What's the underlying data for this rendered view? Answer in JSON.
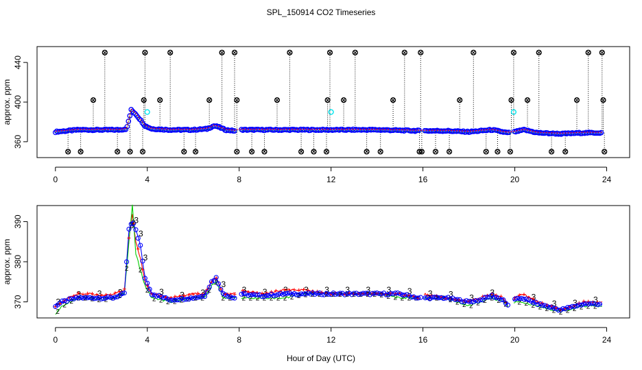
{
  "title": "SPL_150914  CO2 Timeseries",
  "xlabel": "Hour of Day (UTC)",
  "colors": {
    "axis": "#000000",
    "series_black": "#000000",
    "series_red": "#ff0000",
    "series_green": "#00cd00",
    "series_blue": "#0000ff",
    "series_cyan": "#00e5ee"
  },
  "chart_data": [
    {
      "type": "scatter",
      "panel": "top",
      "title": "",
      "ylabel": "approx. ppm",
      "xlabel": "",
      "xlim": [
        -0.8,
        25
      ],
      "ylim": [
        344,
        456
      ],
      "x_ticks": [
        0,
        4,
        8,
        12,
        16,
        20,
        24
      ],
      "y_ticks": [
        360,
        400,
        440
      ],
      "grid": false,
      "baseline": [
        [
          0.0,
          370
        ],
        [
          0.5,
          371
        ],
        [
          1.0,
          372
        ],
        [
          2.0,
          372
        ],
        [
          2.8,
          372
        ],
        [
          3.1,
          373
        ],
        [
          3.3,
          392
        ],
        [
          3.5,
          388
        ],
        [
          3.7,
          382
        ],
        [
          3.9,
          376
        ],
        [
          4.2,
          373
        ],
        [
          5.0,
          372
        ],
        [
          6.0,
          372
        ],
        [
          6.6,
          373
        ],
        [
          6.9,
          376
        ],
        [
          7.1,
          375
        ],
        [
          7.4,
          372
        ],
        [
          7.8,
          371
        ],
        [
          8.0,
          372
        ],
        [
          10.0,
          372
        ],
        [
          12.0,
          372
        ],
        [
          14.0,
          372
        ],
        [
          15.9,
          371
        ],
        [
          16.0,
          371
        ],
        [
          17.0,
          371
        ],
        [
          18.0,
          370
        ],
        [
          19.0,
          372
        ],
        [
          19.7,
          369
        ],
        [
          20.0,
          370
        ],
        [
          20.4,
          372
        ],
        [
          21.0,
          369
        ],
        [
          22.0,
          368
        ],
        [
          23.0,
          369
        ],
        [
          23.8,
          369
        ]
      ],
      "series": [
        {
          "color": "blue",
          "marker": "circle",
          "description": "dense circles along baseline"
        },
        {
          "color": "black",
          "marker": "circle-x",
          "outliers_high": [
            2.15,
            3.9,
            5.0,
            7.25,
            7.8,
            10.2,
            11.95,
            13.05,
            15.2,
            15.9,
            18.2,
            19.95,
            21.05,
            23.2,
            23.8
          ],
          "outliers_high_value": 450,
          "outliers_mid": [
            1.65,
            3.85,
            4.55,
            6.7,
            7.9,
            9.65,
            11.85,
            12.55,
            14.7,
            17.6,
            19.85,
            20.55,
            22.7,
            23.85
          ],
          "outliers_mid_value": 402,
          "outliers_low": [
            0.55,
            1.1,
            2.7,
            3.25,
            3.8,
            5.6,
            6.1,
            7.9,
            8.55,
            9.1,
            10.7,
            11.25,
            11.8,
            13.55,
            14.15,
            15.85,
            15.95,
            16.55,
            17.15,
            18.75,
            19.25,
            19.8,
            21.6,
            22.2,
            23.9
          ],
          "outliers_low_value": 350
        },
        {
          "color": "cyan",
          "marker": "circle",
          "points": [
            [
              4.0,
              390
            ],
            [
              12.0,
              390
            ],
            [
              19.95,
              390
            ]
          ]
        }
      ]
    },
    {
      "type": "line",
      "panel": "bottom",
      "title": "",
      "ylabel": "approx. ppm",
      "xlabel": "Hour of Day (UTC)",
      "xlim": [
        -0.8,
        25
      ],
      "ylim": [
        366,
        394
      ],
      "x_ticks": [
        0,
        4,
        8,
        12,
        16,
        20,
        24
      ],
      "y_ticks": [
        370,
        380,
        390
      ],
      "grid": false,
      "series": [
        {
          "color": "red",
          "marker": "+",
          "points": [
            [
              0.0,
              369
            ],
            [
              0.3,
              370
            ],
            [
              0.6,
              371
            ],
            [
              1.0,
              372
            ],
            [
              1.5,
              372
            ],
            [
              2.0,
              371.5
            ],
            [
              2.5,
              372
            ],
            [
              3.0,
              373
            ],
            [
              3.2,
              386
            ],
            [
              3.35,
              392
            ],
            [
              3.5,
              385
            ],
            [
              3.7,
              381
            ],
            [
              3.9,
              375
            ],
            [
              4.2,
              372
            ],
            [
              5.0,
              371
            ],
            [
              6.0,
              372
            ],
            [
              6.5,
              372
            ],
            [
              6.8,
              375
            ],
            [
              7.0,
              376
            ],
            [
              7.3,
              372
            ],
            [
              7.8,
              372
            ],
            [
              8.0,
              373
            ],
            [
              9.0,
              372
            ],
            [
              10.0,
              373
            ],
            [
              11.0,
              373
            ],
            [
              12.0,
              372
            ],
            [
              13.0,
              372
            ],
            [
              14.0,
              372
            ],
            [
              15.0,
              372
            ],
            [
              15.8,
              371
            ],
            [
              16.0,
              372
            ],
            [
              17.0,
              371
            ],
            [
              18.0,
              370
            ],
            [
              18.5,
              371
            ],
            [
              19.0,
              372
            ],
            [
              19.5,
              371
            ],
            [
              19.7,
              369
            ],
            [
              20.0,
              371
            ],
            [
              20.3,
              372
            ],
            [
              21.0,
              370
            ],
            [
              22.0,
              368
            ],
            [
              23.0,
              370
            ],
            [
              23.8,
              370
            ]
          ]
        },
        {
          "color": "green",
          "marker": "2",
          "points": [
            [
              0.0,
              367
            ],
            [
              0.3,
              369
            ],
            [
              0.6,
              370
            ],
            [
              1.0,
              371
            ],
            [
              1.5,
              371
            ],
            [
              2.0,
              370.5
            ],
            [
              2.5,
              371
            ],
            [
              3.0,
              372
            ],
            [
              3.2,
              385
            ],
            [
              3.35,
              394
            ],
            [
              3.5,
              382
            ],
            [
              3.7,
              378
            ],
            [
              3.9,
              374
            ],
            [
              4.2,
              371
            ],
            [
              5.0,
              370
            ],
            [
              6.0,
              371
            ],
            [
              6.5,
              371
            ],
            [
              6.8,
              374
            ],
            [
              7.0,
              375
            ],
            [
              7.3,
              371
            ],
            [
              7.8,
              371
            ],
            [
              8.0,
              371
            ],
            [
              9.0,
              371
            ],
            [
              10.0,
              371
            ],
            [
              11.0,
              372
            ],
            [
              12.0,
              372
            ],
            [
              13.0,
              372
            ],
            [
              14.0,
              372
            ],
            [
              15.0,
              371
            ],
            [
              15.8,
              371
            ],
            [
              16.0,
              371
            ],
            [
              17.0,
              371
            ],
            [
              18.0,
              369
            ],
            [
              18.5,
              370
            ],
            [
              19.0,
              371
            ],
            [
              19.5,
              370
            ],
            [
              19.7,
              369
            ],
            [
              20.0,
              370
            ],
            [
              20.3,
              370
            ],
            [
              21.0,
              369
            ],
            [
              22.0,
              367.5
            ],
            [
              23.0,
              369
            ],
            [
              23.8,
              369
            ]
          ]
        },
        {
          "color": "blue",
          "marker": "circle",
          "label_marker": "3",
          "points": [
            [
              0.0,
              369
            ],
            [
              0.3,
              370
            ],
            [
              0.6,
              370.5
            ],
            [
              1.0,
              371
            ],
            [
              1.5,
              371
            ],
            [
              2.0,
              371
            ],
            [
              2.5,
              371
            ],
            [
              3.0,
              372
            ],
            [
              3.2,
              388
            ],
            [
              3.35,
              390
            ],
            [
              3.5,
              388
            ],
            [
              3.7,
              384
            ],
            [
              3.9,
              376
            ],
            [
              4.2,
              372
            ],
            [
              5.0,
              370.5
            ],
            [
              6.0,
              371
            ],
            [
              6.5,
              371.5
            ],
            [
              6.8,
              375
            ],
            [
              7.0,
              376
            ],
            [
              7.3,
              372
            ],
            [
              7.8,
              371
            ],
            [
              8.0,
              372
            ],
            [
              9.0,
              371.5
            ],
            [
              10.0,
              372
            ],
            [
              11.0,
              372
            ],
            [
              12.0,
              372
            ],
            [
              13.0,
              372
            ],
            [
              14.0,
              372
            ],
            [
              15.0,
              372
            ],
            [
              15.8,
              371
            ],
            [
              16.0,
              371
            ],
            [
              17.0,
              371
            ],
            [
              18.0,
              370
            ],
            [
              18.5,
              370.5
            ],
            [
              19.0,
              371.5
            ],
            [
              19.5,
              370.5
            ],
            [
              19.7,
              369
            ],
            [
              20.0,
              370.5
            ],
            [
              20.3,
              371
            ],
            [
              21.0,
              369.5
            ],
            [
              22.0,
              368
            ],
            [
              23.0,
              369.5
            ],
            [
              23.8,
              369.5
            ]
          ]
        }
      ]
    }
  ]
}
